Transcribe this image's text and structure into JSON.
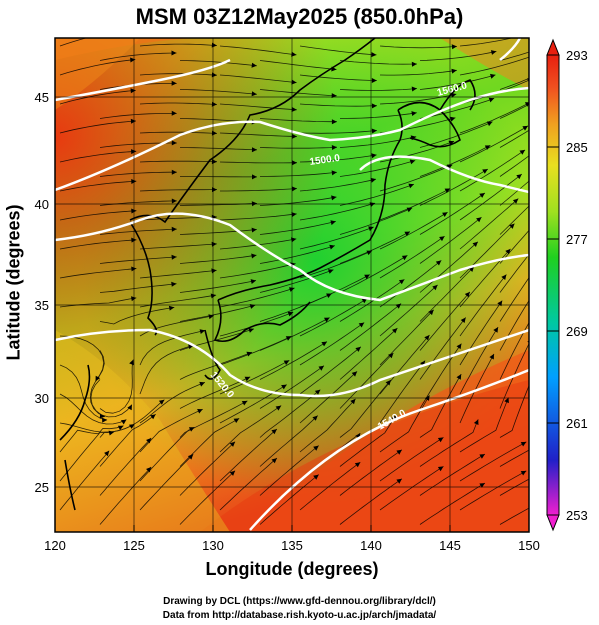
{
  "title": "MSM 03Z12May2025 (850.0hPa)",
  "xlabel": "Longitude (degrees)",
  "ylabel": "Latitude  (degrees)",
  "x_ticks": [
    "120",
    "125",
    "130",
    "135",
    "140",
    "145",
    "150"
  ],
  "y_ticks": [
    "25",
    "30",
    "35",
    "40",
    "45"
  ],
  "colorbar_ticks": [
    "293",
    "285",
    "277",
    "269",
    "261",
    "253"
  ],
  "contour_labels": [
    "1500.0",
    "1560.0",
    "1520.0",
    "1540.0"
  ],
  "credits": {
    "line1": "Drawing by DCL (https://www.gfd-dennou.org/library/dcl/)",
    "line2": "Data from http://database.rish.kyoto-u.ac.jp/arch/jmadata/"
  },
  "map_data": {
    "extent": {
      "lon": [
        120,
        150
      ],
      "lat": [
        22.4,
        47.6
      ]
    },
    "variable": "temperature (K), shaded",
    "colorbar_range": [
      253,
      293
    ],
    "colorbar_colors": [
      "#f01fd0",
      "#2020c8",
      "#00a0ff",
      "#00c8a0",
      "#20d020",
      "#a0e020",
      "#e8e020",
      "#f0a020",
      "#f05020",
      "#e82010"
    ],
    "overlays": [
      "wind streamlines",
      "geopotential height contours (white)",
      "coastlines"
    ]
  }
}
